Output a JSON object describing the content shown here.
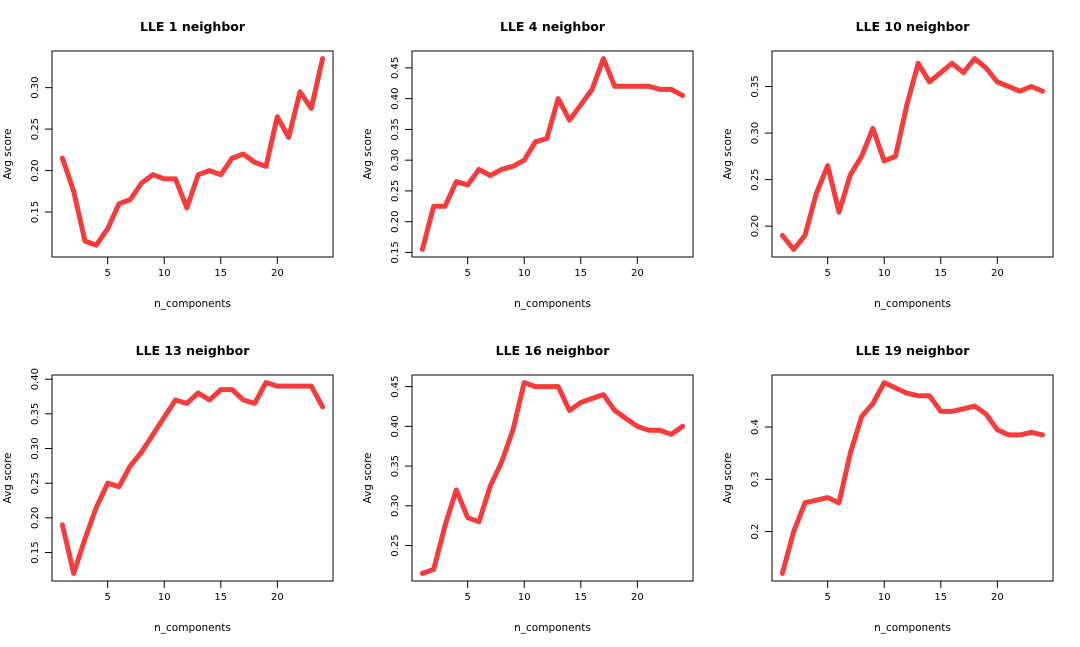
{
  "colors": {
    "series": "#f53b3b"
  },
  "chart_data": [
    {
      "type": "line",
      "title": "LLE 1 neighbor",
      "xlabel": "n_components",
      "ylabel": "Avg score",
      "xlim": [
        1,
        24
      ],
      "ylim": [
        0.105,
        0.335
      ],
      "xticks": [
        5,
        10,
        15,
        20
      ],
      "yticks": [
        0.15,
        0.2,
        0.25,
        0.3
      ],
      "ytick_labels": [
        "0.15",
        "0.20",
        "0.25",
        "0.30"
      ],
      "grid": false,
      "x": [
        1,
        2,
        3,
        4,
        5,
        6,
        7,
        8,
        9,
        10,
        11,
        12,
        13,
        14,
        15,
        16,
        17,
        18,
        19,
        20,
        21,
        22,
        23,
        24
      ],
      "series": [
        {
          "values": [
            0.215,
            0.175,
            0.115,
            0.11,
            0.13,
            0.16,
            0.165,
            0.185,
            0.195,
            0.19,
            0.19,
            0.155,
            0.195,
            0.2,
            0.195,
            0.215,
            0.22,
            0.21,
            0.205,
            0.265,
            0.24,
            0.295,
            0.275,
            0.335
          ]
        }
      ]
    },
    {
      "type": "line",
      "title": "LLE 4 neighbor",
      "xlabel": "n_components",
      "ylabel": "Avg score",
      "xlim": [
        1,
        24
      ],
      "ylim": [
        0.155,
        0.465
      ],
      "xticks": [
        5,
        10,
        15,
        20
      ],
      "yticks": [
        0.15,
        0.2,
        0.25,
        0.3,
        0.35,
        0.4,
        0.45
      ],
      "ytick_labels": [
        "0.15",
        "0.20",
        "0.25",
        "0.30",
        "0.35",
        "0.40",
        "0.45"
      ],
      "grid": false,
      "x": [
        1,
        2,
        3,
        4,
        5,
        6,
        7,
        8,
        9,
        10,
        11,
        12,
        13,
        14,
        15,
        16,
        17,
        18,
        19,
        20,
        21,
        22,
        23,
        24
      ],
      "series": [
        {
          "values": [
            0.155,
            0.225,
            0.225,
            0.265,
            0.26,
            0.285,
            0.275,
            0.285,
            0.29,
            0.3,
            0.33,
            0.335,
            0.4,
            0.365,
            0.39,
            0.415,
            0.465,
            0.42,
            0.42,
            0.42,
            0.42,
            0.415,
            0.415,
            0.405
          ]
        }
      ]
    },
    {
      "type": "line",
      "title": "LLE 10 neighbor",
      "xlabel": "n_components",
      "ylabel": "Avg score",
      "xlim": [
        1,
        24
      ],
      "ylim": [
        0.175,
        0.38
      ],
      "xticks": [
        5,
        10,
        15,
        20
      ],
      "yticks": [
        0.2,
        0.25,
        0.3,
        0.35
      ],
      "ytick_labels": [
        "0.20",
        "0.25",
        "0.30",
        "0.35"
      ],
      "grid": false,
      "x": [
        1,
        2,
        3,
        4,
        5,
        6,
        7,
        8,
        9,
        10,
        11,
        12,
        13,
        14,
        15,
        16,
        17,
        18,
        19,
        20,
        21,
        22,
        23,
        24
      ],
      "series": [
        {
          "values": [
            0.19,
            0.175,
            0.19,
            0.235,
            0.265,
            0.215,
            0.255,
            0.275,
            0.305,
            0.27,
            0.275,
            0.33,
            0.375,
            0.355,
            0.365,
            0.375,
            0.365,
            0.38,
            0.37,
            0.355,
            0.35,
            0.345,
            0.35,
            0.345
          ]
        }
      ]
    },
    {
      "type": "line",
      "title": "LLE 13 neighbor",
      "xlabel": "n_components",
      "ylabel": "Avg score",
      "xlim": [
        1,
        24
      ],
      "ylim": [
        0.12,
        0.395
      ],
      "xticks": [
        5,
        10,
        15,
        20
      ],
      "yticks": [
        0.15,
        0.2,
        0.25,
        0.3,
        0.35,
        0.4
      ],
      "ytick_labels": [
        "0.15",
        "0.20",
        "0.25",
        "0.30",
        "0.35",
        "0.40"
      ],
      "grid": false,
      "x": [
        1,
        2,
        3,
        4,
        5,
        6,
        7,
        8,
        9,
        10,
        11,
        12,
        13,
        14,
        15,
        16,
        17,
        18,
        19,
        20,
        21,
        22,
        23,
        24
      ],
      "series": [
        {
          "values": [
            0.19,
            0.12,
            0.17,
            0.215,
            0.25,
            0.245,
            0.275,
            0.295,
            0.32,
            0.345,
            0.37,
            0.365,
            0.38,
            0.37,
            0.385,
            0.385,
            0.37,
            0.365,
            0.395,
            0.39,
            0.39,
            0.39,
            0.39,
            0.36
          ]
        }
      ]
    },
    {
      "type": "line",
      "title": "LLE 16 neighbor",
      "xlabel": "n_components",
      "ylabel": "Avg score",
      "xlim": [
        1,
        24
      ],
      "ylim": [
        0.215,
        0.455
      ],
      "xticks": [
        5,
        10,
        15,
        20
      ],
      "yticks": [
        0.25,
        0.3,
        0.35,
        0.4,
        0.45
      ],
      "ytick_labels": [
        "0.25",
        "0.30",
        "0.35",
        "0.40",
        "0.45"
      ],
      "grid": false,
      "x": [
        1,
        2,
        3,
        4,
        5,
        6,
        7,
        8,
        9,
        10,
        11,
        12,
        13,
        14,
        15,
        16,
        17,
        18,
        19,
        20,
        21,
        22,
        23,
        24
      ],
      "series": [
        {
          "values": [
            0.215,
            0.22,
            0.275,
            0.32,
            0.285,
            0.28,
            0.325,
            0.355,
            0.395,
            0.455,
            0.45,
            0.45,
            0.45,
            0.42,
            0.43,
            0.435,
            0.44,
            0.42,
            0.41,
            0.4,
            0.395,
            0.395,
            0.39,
            0.4
          ]
        }
      ]
    },
    {
      "type": "line",
      "title": "LLE 19 neighbor",
      "xlabel": "n_components",
      "ylabel": "Avg score",
      "xlim": [
        1,
        24
      ],
      "ylim": [
        0.12,
        0.485
      ],
      "xticks": [
        5,
        10,
        15,
        20
      ],
      "yticks": [
        0.2,
        0.3,
        0.4
      ],
      "ytick_labels": [
        "0.2",
        "0.3",
        "0.4"
      ],
      "grid": false,
      "x": [
        1,
        2,
        3,
        4,
        5,
        6,
        7,
        8,
        9,
        10,
        11,
        12,
        13,
        14,
        15,
        16,
        17,
        18,
        19,
        20,
        21,
        22,
        23,
        24
      ],
      "series": [
        {
          "values": [
            0.12,
            0.2,
            0.255,
            0.26,
            0.265,
            0.255,
            0.35,
            0.42,
            0.445,
            0.485,
            0.475,
            0.465,
            0.46,
            0.46,
            0.43,
            0.43,
            0.435,
            0.44,
            0.425,
            0.395,
            0.385,
            0.385,
            0.39,
            0.385
          ]
        }
      ]
    }
  ]
}
